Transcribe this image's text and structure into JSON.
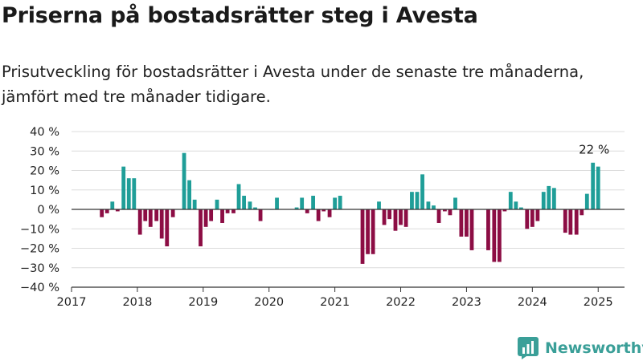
{
  "title": "Priserna på bostadsrätter steg i Avesta",
  "subtitle": "Prisutveckling för bostadsrätter i Avesta under de senaste tre månaderna, jämfört med tre månader tidigare.",
  "brand": "Newsworthy",
  "chart_data": {
    "type": "bar",
    "xlim": [
      2017.0,
      2025.4
    ],
    "ylim": [
      -40,
      40
    ],
    "yticks": [
      {
        "v": 40,
        "label": "40 %"
      },
      {
        "v": 30,
        "label": "30 %"
      },
      {
        "v": 20,
        "label": "20 %"
      },
      {
        "v": 10,
        "label": "10 %"
      },
      {
        "v": 0,
        "label": "0 %"
      },
      {
        "v": -10,
        "label": "−10 %"
      },
      {
        "v": -20,
        "label": "−20 %"
      },
      {
        "v": -30,
        "label": "−30 %"
      },
      {
        "v": -40,
        "label": "−40 %"
      }
    ],
    "xticks": [
      {
        "v": 2017,
        "label": "2017"
      },
      {
        "v": 2018,
        "label": "2018"
      },
      {
        "v": 2019,
        "label": "2019"
      },
      {
        "v": 2020,
        "label": "2020"
      },
      {
        "v": 2021,
        "label": "2021"
      },
      {
        "v": 2022,
        "label": "2022"
      },
      {
        "v": 2023,
        "label": "2023"
      },
      {
        "v": 2024,
        "label": "2024"
      },
      {
        "v": 2025,
        "label": "2025"
      }
    ],
    "grid": true,
    "colors": {
      "positive": "#1f9e98",
      "negative": "#8c0d44"
    },
    "bars": [
      {
        "x": 2017.46,
        "y": -4
      },
      {
        "x": 2017.54,
        "y": -2
      },
      {
        "x": 2017.62,
        "y": 4
      },
      {
        "x": 2017.7,
        "y": -1
      },
      {
        "x": 2017.79,
        "y": 22
      },
      {
        "x": 2017.87,
        "y": 16
      },
      {
        "x": 2017.95,
        "y": 16
      },
      {
        "x": 2018.04,
        "y": -13
      },
      {
        "x": 2018.12,
        "y": -6
      },
      {
        "x": 2018.2,
        "y": -9
      },
      {
        "x": 2018.29,
        "y": -6
      },
      {
        "x": 2018.37,
        "y": -15
      },
      {
        "x": 2018.45,
        "y": -19
      },
      {
        "x": 2018.54,
        "y": -4
      },
      {
        "x": 2018.71,
        "y": 29
      },
      {
        "x": 2018.79,
        "y": 15
      },
      {
        "x": 2018.87,
        "y": 5
      },
      {
        "x": 2018.96,
        "y": -19
      },
      {
        "x": 2019.04,
        "y": -9
      },
      {
        "x": 2019.12,
        "y": -6
      },
      {
        "x": 2019.21,
        "y": 5
      },
      {
        "x": 2019.29,
        "y": -7
      },
      {
        "x": 2019.37,
        "y": -2
      },
      {
        "x": 2019.46,
        "y": -2
      },
      {
        "x": 2019.54,
        "y": 13
      },
      {
        "x": 2019.62,
        "y": 7
      },
      {
        "x": 2019.71,
        "y": 4
      },
      {
        "x": 2019.79,
        "y": 1
      },
      {
        "x": 2019.87,
        "y": -6
      },
      {
        "x": 2020.04,
        "y": 0
      },
      {
        "x": 2020.12,
        "y": 6
      },
      {
        "x": 2020.42,
        "y": 1
      },
      {
        "x": 2020.5,
        "y": 6
      },
      {
        "x": 2020.58,
        "y": -2
      },
      {
        "x": 2020.67,
        "y": 7
      },
      {
        "x": 2020.75,
        "y": -6
      },
      {
        "x": 2020.83,
        "y": -1
      },
      {
        "x": 2020.92,
        "y": -4
      },
      {
        "x": 2021.0,
        "y": 6
      },
      {
        "x": 2021.08,
        "y": 7
      },
      {
        "x": 2021.42,
        "y": -28
      },
      {
        "x": 2021.5,
        "y": -23
      },
      {
        "x": 2021.58,
        "y": -23
      },
      {
        "x": 2021.67,
        "y": 4
      },
      {
        "x": 2021.75,
        "y": -8
      },
      {
        "x": 2021.83,
        "y": -5
      },
      {
        "x": 2021.92,
        "y": -11
      },
      {
        "x": 2022.0,
        "y": -8
      },
      {
        "x": 2022.08,
        "y": -9
      },
      {
        "x": 2022.17,
        "y": 9
      },
      {
        "x": 2022.25,
        "y": 9
      },
      {
        "x": 2022.33,
        "y": 18
      },
      {
        "x": 2022.42,
        "y": 4
      },
      {
        "x": 2022.5,
        "y": 2
      },
      {
        "x": 2022.58,
        "y": -7
      },
      {
        "x": 2022.67,
        "y": -1
      },
      {
        "x": 2022.75,
        "y": -3
      },
      {
        "x": 2022.83,
        "y": 6
      },
      {
        "x": 2022.92,
        "y": -14
      },
      {
        "x": 2023.0,
        "y": -14
      },
      {
        "x": 2023.08,
        "y": -21
      },
      {
        "x": 2023.33,
        "y": -21
      },
      {
        "x": 2023.42,
        "y": -27
      },
      {
        "x": 2023.5,
        "y": -27
      },
      {
        "x": 2023.58,
        "y": -1
      },
      {
        "x": 2023.67,
        "y": 9
      },
      {
        "x": 2023.75,
        "y": 4
      },
      {
        "x": 2023.83,
        "y": 1
      },
      {
        "x": 2023.92,
        "y": -10
      },
      {
        "x": 2024.0,
        "y": -9
      },
      {
        "x": 2024.08,
        "y": -6
      },
      {
        "x": 2024.17,
        "y": 9
      },
      {
        "x": 2024.25,
        "y": 12
      },
      {
        "x": 2024.33,
        "y": 11
      },
      {
        "x": 2024.5,
        "y": -12
      },
      {
        "x": 2024.58,
        "y": -13
      },
      {
        "x": 2024.67,
        "y": -13
      },
      {
        "x": 2024.75,
        "y": -3
      },
      {
        "x": 2024.83,
        "y": 8
      },
      {
        "x": 2024.92,
        "y": 24
      },
      {
        "x": 2025.0,
        "y": 22
      }
    ],
    "annotation": {
      "label": "22 %",
      "x": 2025.0,
      "y": 22
    }
  }
}
